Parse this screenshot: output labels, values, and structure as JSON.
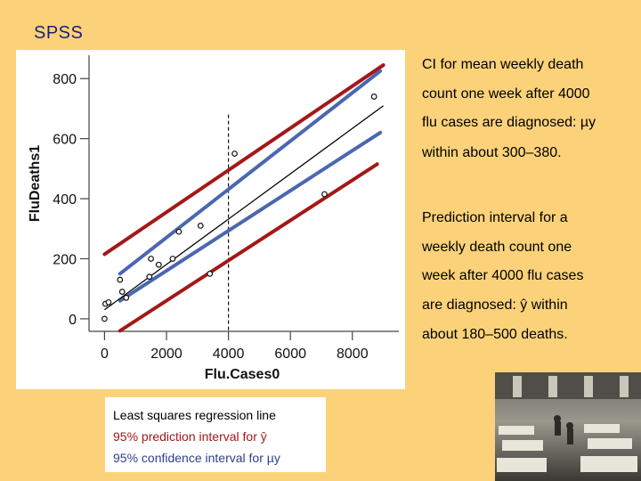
{
  "slide": {
    "title": "SPSS"
  },
  "annotations": {
    "ci": [
      "CI for mean weekly death",
      "count one week after 4000",
      "flu cases are diagnosed: µy",
      "within about 300–380."
    ],
    "pi": [
      "Prediction interval for a",
      "weekly death count one",
      "week after 4000 flu cases",
      "are diagnosed: ŷ within",
      "about 180–500 deaths."
    ]
  },
  "legend": {
    "regression_label": "Least squares regression line",
    "prediction_label": "95% prediction interval for ŷ",
    "confidence_label": "95% confidence interval for µy"
  },
  "colors": {
    "background": "#FBD27A",
    "title": "#1b1f7a",
    "prediction_band": "#a31818",
    "confidence_band": "#4a67b0",
    "regression_line": "#000000"
  },
  "photo": {
    "icon": "historical-hospital-ward-photo"
  },
  "chart_data": {
    "type": "scatter",
    "title": "",
    "xlabel": "Flu.Cases0",
    "ylabel": "FluDeaths1",
    "xlim": [
      -500,
      9500
    ],
    "ylim": [
      -30,
      860
    ],
    "xticks": [
      0,
      2000,
      4000,
      6000,
      8000
    ],
    "yticks": [
      0,
      200,
      400,
      600,
      800
    ],
    "x_tick_labels": [
      "0",
      "2000",
      "4000",
      "6000",
      "8000"
    ],
    "y_tick_labels": [
      "0",
      "200",
      "400",
      "600",
      "800"
    ],
    "grid": false,
    "x_reference": 4000,
    "points": [
      {
        "x": 0,
        "y": 0
      },
      {
        "x": 30,
        "y": 50
      },
      {
        "x": 130,
        "y": 55
      },
      {
        "x": 500,
        "y": 130
      },
      {
        "x": 570,
        "y": 90
      },
      {
        "x": 700,
        "y": 70
      },
      {
        "x": 1500,
        "y": 200
      },
      {
        "x": 1450,
        "y": 140
      },
      {
        "x": 1750,
        "y": 180
      },
      {
        "x": 2200,
        "y": 200
      },
      {
        "x": 2400,
        "y": 290
      },
      {
        "x": 3100,
        "y": 310
      },
      {
        "x": 3400,
        "y": 150
      },
      {
        "x": 4200,
        "y": 550
      },
      {
        "x": 7100,
        "y": 415
      },
      {
        "x": 8700,
        "y": 740
      }
    ],
    "regression": {
      "intercept": 30,
      "slope": 0.0755,
      "x_range": [
        0,
        9000
      ]
    },
    "series": [
      {
        "name": "95% prediction interval for ŷ (upper)",
        "x": [
          0,
          9000
        ],
        "y": [
          215,
          845
        ]
      },
      {
        "name": "95% prediction interval for ŷ (lower)",
        "x": [
          500,
          8800
        ],
        "y": [
          -40,
          515
        ]
      },
      {
        "name": "95% confidence interval for µy (upper)",
        "x": [
          500,
          8900
        ],
        "y": [
          150,
          825
        ]
      },
      {
        "name": "95% confidence interval for µy (lower)",
        "x": [
          500,
          8900
        ],
        "y": [
          60,
          620
        ]
      }
    ]
  }
}
